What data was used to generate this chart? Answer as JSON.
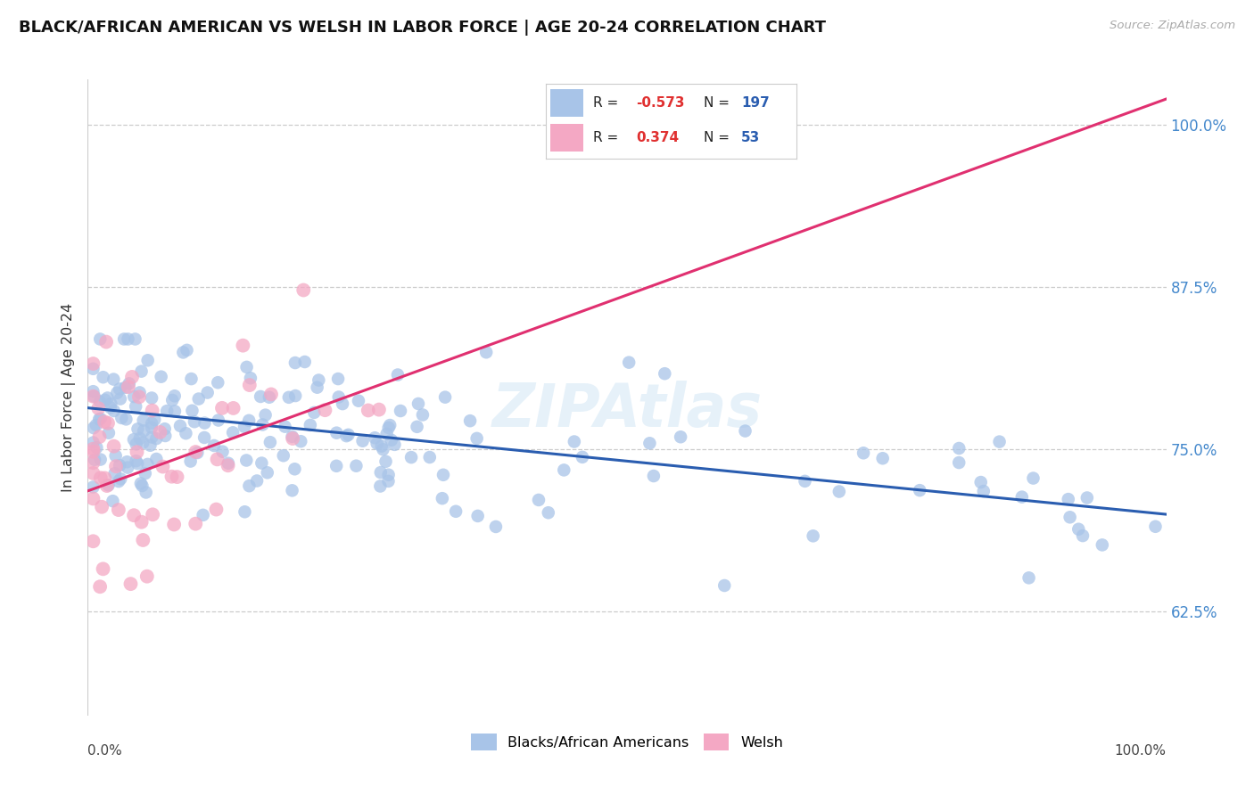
{
  "title": "BLACK/AFRICAN AMERICAN VS WELSH IN LABOR FORCE | AGE 20-24 CORRELATION CHART",
  "source": "Source: ZipAtlas.com",
  "ylabel": "In Labor Force | Age 20-24",
  "ytick_labels": [
    "62.5%",
    "75.0%",
    "87.5%",
    "100.0%"
  ],
  "ytick_values": [
    0.625,
    0.75,
    0.875,
    1.0
  ],
  "xlim": [
    0.0,
    1.0
  ],
  "ylim": [
    0.545,
    1.035
  ],
  "blue_R": -0.573,
  "blue_N": 197,
  "pink_R": 0.374,
  "pink_N": 53,
  "blue_color": "#a8c4e8",
  "pink_color": "#f4a8c4",
  "blue_line_color": "#2a5db0",
  "pink_line_color": "#e03070",
  "legend_label_blue": "Blacks/African Americans",
  "legend_label_pink": "Welsh",
  "watermark": "ZIPAtlas",
  "blue_line_x0": 0.0,
  "blue_line_y0": 0.782,
  "blue_line_x1": 1.0,
  "blue_line_y1": 0.7,
  "pink_line_x0": 0.0,
  "pink_line_y0": 0.718,
  "pink_line_x1": 1.0,
  "pink_line_y1": 1.02
}
